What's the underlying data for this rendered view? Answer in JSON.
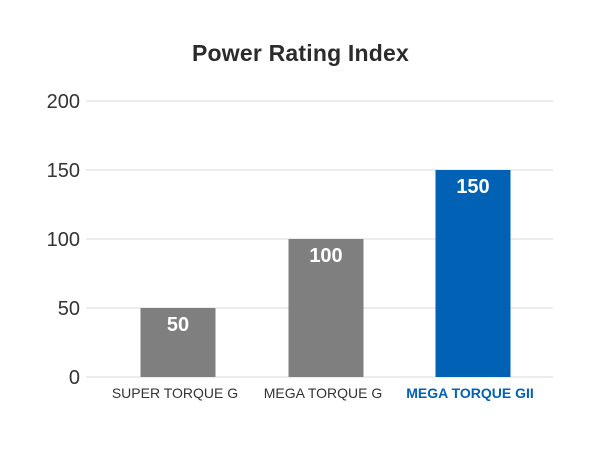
{
  "chart_data": {
    "type": "bar",
    "title": "Power Rating Index",
    "xlabel": "",
    "ylabel": "",
    "categories": [
      "SUPER TORQUE G",
      "MEGA TORQUE G",
      "MEGA TORQUE GII"
    ],
    "values": [
      50,
      100,
      150
    ],
    "data_labels": [
      "50",
      "100",
      "150"
    ],
    "ylim": [
      0,
      200
    ],
    "yticks": [
      0,
      50,
      100,
      150,
      200
    ],
    "grid": true,
    "legend": "none",
    "colors": {
      "default_bar": "#7f7f7f",
      "highlight_bar": "#0061b5",
      "highlight_label": "#0061b5",
      "gridline": "#d9d9d9",
      "text": "#333333"
    },
    "highlight_index": 2
  }
}
